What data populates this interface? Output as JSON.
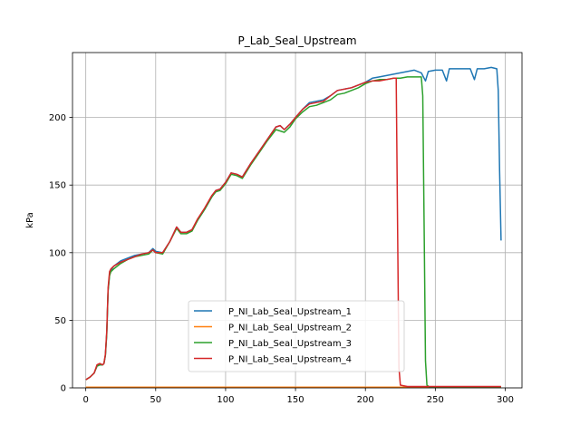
{
  "chart_data": {
    "type": "line",
    "title": "P_Lab_Seal_Upstream",
    "xlabel": "",
    "ylabel": "kPa",
    "xlim": [
      -9.5,
      312
    ],
    "ylim": [
      0,
      248
    ],
    "xticks": [
      0,
      50,
      100,
      150,
      200,
      250,
      300
    ],
    "yticks": [
      0,
      50,
      100,
      150,
      200
    ],
    "grid": true,
    "legend": "lower-center",
    "series": [
      {
        "name": "P_NI_Lab_Seal_Upstream_1",
        "color": "#1f77b4",
        "points": [
          [
            0,
            6
          ],
          [
            3,
            8
          ],
          [
            6,
            11
          ],
          [
            8,
            16
          ],
          [
            10,
            17
          ],
          [
            12,
            17
          ],
          [
            13,
            18
          ],
          [
            14,
            24
          ],
          [
            15,
            40
          ],
          [
            16,
            72
          ],
          [
            17,
            84
          ],
          [
            18,
            87
          ],
          [
            20,
            90
          ],
          [
            25,
            94
          ],
          [
            30,
            96
          ],
          [
            35,
            98
          ],
          [
            40,
            99
          ],
          [
            45,
            100
          ],
          [
            48,
            103
          ],
          [
            50,
            101
          ],
          [
            55,
            100
          ],
          [
            60,
            108
          ],
          [
            65,
            119
          ],
          [
            68,
            115
          ],
          [
            72,
            115
          ],
          [
            76,
            117
          ],
          [
            80,
            124
          ],
          [
            85,
            132
          ],
          [
            90,
            141
          ],
          [
            93,
            146
          ],
          [
            96,
            147
          ],
          [
            100,
            152
          ],
          [
            104,
            159
          ],
          [
            108,
            158
          ],
          [
            112,
            156
          ],
          [
            118,
            166
          ],
          [
            124,
            175
          ],
          [
            130,
            184
          ],
          [
            136,
            193
          ],
          [
            139,
            194
          ],
          [
            142,
            191
          ],
          [
            146,
            195
          ],
          [
            150,
            200
          ],
          [
            155,
            206
          ],
          [
            160,
            211
          ],
          [
            165,
            212
          ],
          [
            170,
            213
          ],
          [
            175,
            216
          ],
          [
            180,
            220
          ],
          [
            185,
            221
          ],
          [
            190,
            222
          ],
          [
            195,
            224
          ],
          [
            200,
            226
          ],
          [
            205,
            229
          ],
          [
            210,
            230
          ],
          [
            215,
            231
          ],
          [
            220,
            232
          ],
          [
            225,
            233
          ],
          [
            230,
            234
          ],
          [
            235,
            235
          ],
          [
            240,
            233
          ],
          [
            243,
            227
          ],
          [
            245,
            234
          ],
          [
            250,
            235
          ],
          [
            255,
            235
          ],
          [
            258,
            227
          ],
          [
            260,
            236
          ],
          [
            265,
            236
          ],
          [
            270,
            236
          ],
          [
            275,
            236
          ],
          [
            278,
            228
          ],
          [
            280,
            236
          ],
          [
            285,
            236
          ],
          [
            290,
            237
          ],
          [
            294,
            236
          ],
          [
            295,
            220
          ],
          [
            296,
            160
          ],
          [
            297,
            109
          ]
        ]
      },
      {
        "name": "P_NI_Lab_Seal_Upstream_2",
        "color": "#ff7f0e",
        "points": [
          [
            0,
            0.5
          ],
          [
            50,
            0.5
          ],
          [
            100,
            0.5
          ],
          [
            150,
            0.5
          ],
          [
            200,
            0.5
          ],
          [
            250,
            0.5
          ],
          [
            297,
            0.5
          ]
        ]
      },
      {
        "name": "P_NI_Lab_Seal_Upstream_3",
        "color": "#2ca02c",
        "points": [
          [
            0,
            6
          ],
          [
            3,
            8
          ],
          [
            6,
            11
          ],
          [
            8,
            16
          ],
          [
            10,
            17
          ],
          [
            12,
            17
          ],
          [
            13,
            18
          ],
          [
            14,
            24
          ],
          [
            15,
            40
          ],
          [
            16,
            72
          ],
          [
            17,
            83
          ],
          [
            18,
            86
          ],
          [
            20,
            88
          ],
          [
            25,
            92
          ],
          [
            30,
            95
          ],
          [
            35,
            97
          ],
          [
            40,
            98
          ],
          [
            45,
            99
          ],
          [
            48,
            102
          ],
          [
            50,
            100
          ],
          [
            55,
            99
          ],
          [
            60,
            108
          ],
          [
            65,
            118
          ],
          [
            68,
            114
          ],
          [
            72,
            114
          ],
          [
            76,
            116
          ],
          [
            80,
            124
          ],
          [
            85,
            132
          ],
          [
            90,
            141
          ],
          [
            93,
            145
          ],
          [
            96,
            146
          ],
          [
            100,
            151
          ],
          [
            104,
            158
          ],
          [
            108,
            157
          ],
          [
            112,
            155
          ],
          [
            118,
            165
          ],
          [
            124,
            174
          ],
          [
            130,
            183
          ],
          [
            136,
            191
          ],
          [
            139,
            190
          ],
          [
            142,
            189
          ],
          [
            146,
            193
          ],
          [
            150,
            199
          ],
          [
            155,
            204
          ],
          [
            160,
            208
          ],
          [
            165,
            209
          ],
          [
            170,
            211
          ],
          [
            175,
            213
          ],
          [
            180,
            217
          ],
          [
            185,
            218
          ],
          [
            190,
            220
          ],
          [
            195,
            222
          ],
          [
            200,
            225
          ],
          [
            205,
            227
          ],
          [
            210,
            228
          ],
          [
            215,
            228
          ],
          [
            220,
            229
          ],
          [
            225,
            229
          ],
          [
            230,
            230
          ],
          [
            235,
            230
          ],
          [
            240,
            230
          ],
          [
            241,
            216
          ],
          [
            242,
            120
          ],
          [
            243,
            20
          ],
          [
            244,
            2
          ],
          [
            246,
            0.5
          ],
          [
            250,
            0.8
          ],
          [
            260,
            0.8
          ],
          [
            270,
            0.8
          ],
          [
            280,
            0.8
          ],
          [
            290,
            0.8
          ],
          [
            297,
            0.8
          ]
        ]
      },
      {
        "name": "P_NI_Lab_Seal_Upstream_4",
        "color": "#d62728",
        "points": [
          [
            0,
            6
          ],
          [
            3,
            8
          ],
          [
            6,
            11
          ],
          [
            8,
            17
          ],
          [
            10,
            18
          ],
          [
            12,
            17
          ],
          [
            13,
            18
          ],
          [
            14,
            25
          ],
          [
            15,
            42
          ],
          [
            16,
            74
          ],
          [
            17,
            86
          ],
          [
            18,
            88
          ],
          [
            20,
            90
          ],
          [
            25,
            93
          ],
          [
            30,
            95
          ],
          [
            35,
            97
          ],
          [
            40,
            99
          ],
          [
            45,
            100
          ],
          [
            48,
            102
          ],
          [
            50,
            100
          ],
          [
            55,
            100
          ],
          [
            60,
            108
          ],
          [
            65,
            119
          ],
          [
            68,
            115
          ],
          [
            72,
            115
          ],
          [
            76,
            117
          ],
          [
            80,
            125
          ],
          [
            85,
            133
          ],
          [
            90,
            142
          ],
          [
            93,
            146
          ],
          [
            96,
            147
          ],
          [
            100,
            152
          ],
          [
            104,
            159
          ],
          [
            108,
            158
          ],
          [
            112,
            156
          ],
          [
            118,
            166
          ],
          [
            124,
            175
          ],
          [
            130,
            184
          ],
          [
            136,
            193
          ],
          [
            139,
            194
          ],
          [
            142,
            191
          ],
          [
            146,
            195
          ],
          [
            150,
            200
          ],
          [
            155,
            206
          ],
          [
            160,
            210
          ],
          [
            165,
            211
          ],
          [
            170,
            212
          ],
          [
            175,
            216
          ],
          [
            180,
            220
          ],
          [
            185,
            221
          ],
          [
            190,
            222
          ],
          [
            195,
            224
          ],
          [
            200,
            226
          ],
          [
            205,
            227
          ],
          [
            210,
            227
          ],
          [
            215,
            228
          ],
          [
            220,
            229
          ],
          [
            222,
            229
          ],
          [
            223,
            120
          ],
          [
            224,
            15
          ],
          [
            225,
            2
          ],
          [
            230,
            1
          ],
          [
            240,
            1
          ],
          [
            250,
            1
          ],
          [
            260,
            1
          ],
          [
            270,
            1
          ],
          [
            280,
            1
          ],
          [
            290,
            1
          ],
          [
            297,
            1
          ]
        ]
      }
    ]
  }
}
